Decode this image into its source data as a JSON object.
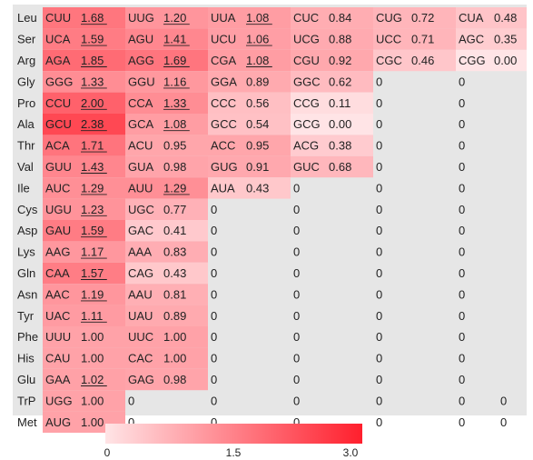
{
  "chart_data": {
    "type": "heatmap",
    "title": "",
    "colors": {
      "background": "#e6e6e6",
      "low": "#ffe4e6",
      "high": "#ff1f2d"
    },
    "colorbar": {
      "min": 0,
      "max": 3.0,
      "ticks": [
        "0",
        "1.5",
        "3.0"
      ]
    },
    "rows": [
      {
        "aa": "Leu",
        "cells": [
          {
            "codon": "CUU",
            "value": "1.68",
            "underline": true
          },
          {
            "codon": "UUG",
            "value": "1.20",
            "underline": true
          },
          {
            "codon": "UUA",
            "value": "1.08",
            "underline": true
          },
          {
            "codon": "CUC",
            "value": "0.84",
            "underline": false
          },
          {
            "codon": "CUG",
            "value": "0.72",
            "underline": false
          },
          {
            "codon": "CUA",
            "value": "0.48",
            "underline": false
          }
        ]
      },
      {
        "aa": "Ser",
        "cells": [
          {
            "codon": "UCA",
            "value": "1.59",
            "underline": true
          },
          {
            "codon": "AGU",
            "value": "1.41",
            "underline": true
          },
          {
            "codon": "UCU",
            "value": "1.06",
            "underline": true
          },
          {
            "codon": "UCG",
            "value": "0.88",
            "underline": false
          },
          {
            "codon": "UCC",
            "value": "0.71",
            "underline": false
          },
          {
            "codon": "AGC",
            "value": "0.35",
            "underline": false
          }
        ]
      },
      {
        "aa": "Arg",
        "cells": [
          {
            "codon": "AGA",
            "value": "1.85",
            "underline": true
          },
          {
            "codon": "AGG",
            "value": "1.69",
            "underline": true
          },
          {
            "codon": "CGA",
            "value": "1.08",
            "underline": true
          },
          {
            "codon": "CGU",
            "value": "0.92",
            "underline": false
          },
          {
            "codon": "CGC",
            "value": "0.46",
            "underline": false
          },
          {
            "codon": "CGG",
            "value": "0.00",
            "underline": false
          }
        ]
      },
      {
        "aa": "Gly",
        "cells": [
          {
            "codon": "GGG",
            "value": "1.33",
            "underline": true
          },
          {
            "codon": "GGU",
            "value": "1.16",
            "underline": true
          },
          {
            "codon": "GGA",
            "value": "0.89",
            "underline": false
          },
          {
            "codon": "GGC",
            "value": "0.62",
            "underline": false
          },
          {
            "codon": "",
            "value": "0",
            "underline": false
          },
          {
            "codon": "",
            "value": "0",
            "underline": false
          }
        ]
      },
      {
        "aa": "Pro",
        "cells": [
          {
            "codon": "CCU",
            "value": "2.00",
            "underline": true
          },
          {
            "codon": "CCA",
            "value": "1.33",
            "underline": true
          },
          {
            "codon": "CCC",
            "value": "0.56",
            "underline": false
          },
          {
            "codon": "CCG",
            "value": "0.11",
            "underline": false
          },
          {
            "codon": "",
            "value": "0",
            "underline": false
          },
          {
            "codon": "",
            "value": "0",
            "underline": false
          }
        ]
      },
      {
        "aa": "Ala",
        "cells": [
          {
            "codon": "GCU",
            "value": "2.38",
            "underline": true
          },
          {
            "codon": "GCA",
            "value": "1.08",
            "underline": true
          },
          {
            "codon": "GCC",
            "value": "0.54",
            "underline": false
          },
          {
            "codon": "GCG",
            "value": "0.00",
            "underline": false
          },
          {
            "codon": "",
            "value": "0",
            "underline": false
          },
          {
            "codon": "",
            "value": "0",
            "underline": false
          }
        ]
      },
      {
        "aa": "Thr",
        "cells": [
          {
            "codon": "ACA",
            "value": "1.71",
            "underline": true
          },
          {
            "codon": "ACU",
            "value": "0.95",
            "underline": false
          },
          {
            "codon": "ACC",
            "value": "0.95",
            "underline": false
          },
          {
            "codon": "ACG",
            "value": "0.38",
            "underline": false
          },
          {
            "codon": "",
            "value": "0",
            "underline": false
          },
          {
            "codon": "",
            "value": "0",
            "underline": false
          }
        ]
      },
      {
        "aa": "Val",
        "cells": [
          {
            "codon": "GUU",
            "value": "1.43",
            "underline": true
          },
          {
            "codon": "GUA",
            "value": "0.98",
            "underline": false
          },
          {
            "codon": "GUG",
            "value": "0.91",
            "underline": false
          },
          {
            "codon": "GUC",
            "value": "0.68",
            "underline": false
          },
          {
            "codon": "",
            "value": "0",
            "underline": false
          },
          {
            "codon": "",
            "value": "0",
            "underline": false
          }
        ]
      },
      {
        "aa": "Ile",
        "cells": [
          {
            "codon": "AUC",
            "value": "1.29",
            "underline": true
          },
          {
            "codon": "AUU",
            "value": "1.29",
            "underline": true
          },
          {
            "codon": "AUA",
            "value": "0.43",
            "underline": false
          },
          {
            "codon": "",
            "value": "0",
            "underline": false
          },
          {
            "codon": "",
            "value": "0",
            "underline": false
          },
          {
            "codon": "",
            "value": "0",
            "underline": false
          }
        ]
      },
      {
        "aa": "Cys",
        "cells": [
          {
            "codon": "UGU",
            "value": "1.23",
            "underline": true
          },
          {
            "codon": "UGC",
            "value": "0.77",
            "underline": false
          },
          {
            "codon": "",
            "value": "0",
            "underline": false
          },
          {
            "codon": "",
            "value": "0",
            "underline": false
          },
          {
            "codon": "",
            "value": "0",
            "underline": false
          },
          {
            "codon": "",
            "value": "0",
            "underline": false
          }
        ]
      },
      {
        "aa": "Asp",
        "cells": [
          {
            "codon": "GAU",
            "value": "1.59",
            "underline": true
          },
          {
            "codon": "GAC",
            "value": "0.41",
            "underline": false
          },
          {
            "codon": "",
            "value": "0",
            "underline": false
          },
          {
            "codon": "",
            "value": "0",
            "underline": false
          },
          {
            "codon": "",
            "value": "0",
            "underline": false
          },
          {
            "codon": "",
            "value": "0",
            "underline": false
          }
        ]
      },
      {
        "aa": "Lys",
        "cells": [
          {
            "codon": "AAG",
            "value": "1.17",
            "underline": true
          },
          {
            "codon": "AAA",
            "value": "0.83",
            "underline": false
          },
          {
            "codon": "",
            "value": "0",
            "underline": false
          },
          {
            "codon": "",
            "value": "0",
            "underline": false
          },
          {
            "codon": "",
            "value": "0",
            "underline": false
          },
          {
            "codon": "",
            "value": "0",
            "underline": false
          }
        ]
      },
      {
        "aa": "Gln",
        "cells": [
          {
            "codon": "CAA",
            "value": "1.57",
            "underline": true
          },
          {
            "codon": "CAG",
            "value": "0.43",
            "underline": false
          },
          {
            "codon": "",
            "value": "0",
            "underline": false
          },
          {
            "codon": "",
            "value": "0",
            "underline": false
          },
          {
            "codon": "",
            "value": "0",
            "underline": false
          },
          {
            "codon": "",
            "value": "0",
            "underline": false
          }
        ]
      },
      {
        "aa": "Asn",
        "cells": [
          {
            "codon": "AAC",
            "value": "1.19",
            "underline": true
          },
          {
            "codon": "AAU",
            "value": "0.81",
            "underline": false
          },
          {
            "codon": "",
            "value": "0",
            "underline": false
          },
          {
            "codon": "",
            "value": "0",
            "underline": false
          },
          {
            "codon": "",
            "value": "0",
            "underline": false
          },
          {
            "codon": "",
            "value": "0",
            "underline": false
          }
        ]
      },
      {
        "aa": "Tyr",
        "cells": [
          {
            "codon": "UAC",
            "value": "1.11",
            "underline": true
          },
          {
            "codon": "UAU",
            "value": "0.89",
            "underline": false
          },
          {
            "codon": "",
            "value": "0",
            "underline": false
          },
          {
            "codon": "",
            "value": "0",
            "underline": false
          },
          {
            "codon": "",
            "value": "0",
            "underline": false
          },
          {
            "codon": "",
            "value": "0",
            "underline": false
          }
        ]
      },
      {
        "aa": "Phe",
        "cells": [
          {
            "codon": "UUU",
            "value": "1.00",
            "underline": false
          },
          {
            "codon": "UUC",
            "value": "1.00",
            "underline": false
          },
          {
            "codon": "",
            "value": "0",
            "underline": false
          },
          {
            "codon": "",
            "value": "0",
            "underline": false
          },
          {
            "codon": "",
            "value": "0",
            "underline": false
          },
          {
            "codon": "",
            "value": "0",
            "underline": false
          }
        ]
      },
      {
        "aa": "His",
        "cells": [
          {
            "codon": "CAU",
            "value": "1.00",
            "underline": false
          },
          {
            "codon": "CAC",
            "value": "1.00",
            "underline": false
          },
          {
            "codon": "",
            "value": "0",
            "underline": false
          },
          {
            "codon": "",
            "value": "0",
            "underline": false
          },
          {
            "codon": "",
            "value": "0",
            "underline": false
          },
          {
            "codon": "",
            "value": "0",
            "underline": false
          }
        ]
      },
      {
        "aa": "Glu",
        "cells": [
          {
            "codon": "GAA",
            "value": "1.02",
            "underline": true
          },
          {
            "codon": "GAG",
            "value": "0.98",
            "underline": false
          },
          {
            "codon": "",
            "value": "0",
            "underline": false
          },
          {
            "codon": "",
            "value": "0",
            "underline": false
          },
          {
            "codon": "",
            "value": "0",
            "underline": false
          },
          {
            "codon": "",
            "value": "0",
            "underline": false
          }
        ]
      },
      {
        "aa": "TrP",
        "cells": [
          {
            "codon": "UGG",
            "value": "1.00",
            "underline": false
          },
          {
            "codon": "",
            "value": "0",
            "underline": false
          },
          {
            "codon": "",
            "value": "0",
            "underline": false
          },
          {
            "codon": "",
            "value": "0",
            "underline": false
          },
          {
            "codon": "",
            "value": "0",
            "underline": false
          },
          {
            "codon": "",
            "value": "0",
            "underline": false
          },
          {
            "codon": "",
            "value": "0",
            "underline": false
          }
        ]
      },
      {
        "aa": "Met",
        "cells": [
          {
            "codon": "AUG",
            "value": "1.00",
            "underline": false
          },
          {
            "codon": "",
            "value": "0",
            "underline": false
          },
          {
            "codon": "",
            "value": "0",
            "underline": false
          },
          {
            "codon": "",
            "value": "0",
            "underline": false
          },
          {
            "codon": "",
            "value": "0",
            "underline": false
          },
          {
            "codon": "",
            "value": "0",
            "underline": false
          },
          {
            "codon": "",
            "value": "0",
            "underline": false
          }
        ]
      }
    ]
  }
}
